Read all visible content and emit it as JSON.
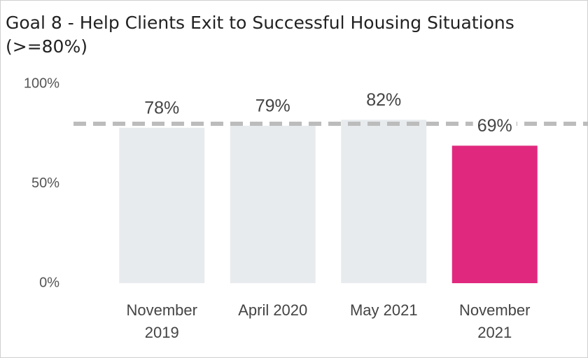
{
  "chart_data": {
    "type": "bar",
    "title": "Goal 8 - Help Clients Exit to Successful Housing Situations (>=80%)",
    "categories": [
      "November 2019",
      "April 2020",
      "May 2021",
      "November 2021"
    ],
    "values": [
      78,
      79,
      82,
      69
    ],
    "value_labels": [
      "78%",
      "79%",
      "82%",
      "69%"
    ],
    "colors": [
      "#e8ebee",
      "#e8ebee",
      "#e8ebee",
      "#e0297e"
    ],
    "target": 80,
    "target_color": "#bcbcbc",
    "ylim": [
      0,
      100
    ],
    "yticks": [
      {
        "value": 0,
        "label": "0%"
      },
      {
        "value": 50,
        "label": "50%"
      },
      {
        "value": 100,
        "label": "100%"
      }
    ],
    "grid": false
  }
}
